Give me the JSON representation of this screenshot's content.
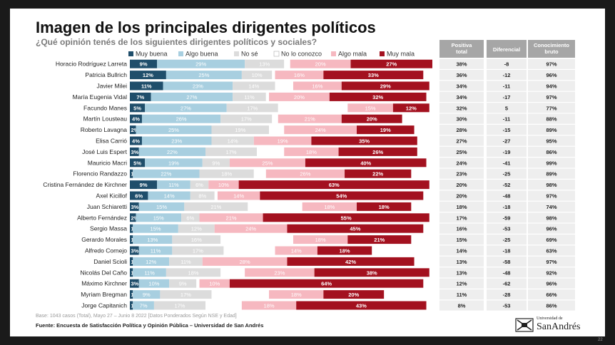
{
  "title": "Imagen de los principales dirigentes políticos",
  "subtitle": "¿Qué opinión tenés de los siguientes dirigentes políticos y sociales?",
  "footnote": "Base: 1043 casos (Total), Mayo 27 – Junio 8 2022 [Datos Ponderados Según NSE y Edad]",
  "source": "Fuente: Encuesta de Satisfacción Política y Opinión Pública – Universidad de San Andrés",
  "logo": {
    "small": "Universidad de",
    "big": "SanAndrés"
  },
  "page_number": "22",
  "colors": {
    "muy_buena": "#1f4e6b",
    "algo_buena": "#a8cfe0",
    "no_se": "#dcdcdc",
    "no_lo_conozco": "#ffffff",
    "algo_mala": "#f6b8c0",
    "muy_mala": "#a3111f",
    "table_header": "#a6a6a6",
    "table_row": "#eeeeee"
  },
  "chart_data": {
    "type": "bar",
    "stacked": true,
    "orientation": "horizontal",
    "legend_position": "top",
    "categories": [
      "Horacio Rodríguez Larreta",
      "Patricia Bullrich",
      "Javier Milei",
      "María Eugenia Vidal",
      "Facundo Manes",
      "Martín Lousteau",
      "Roberto Lavagna",
      "Elisa Carrió",
      "José Luis Espert",
      "Mauricio Macri",
      "Florencio Randazzo",
      "Cristina Fernández de Kirchner",
      "Axel Kicillof",
      "Juan Schiaretti",
      "Alberto Fernández",
      "Sergio Massa",
      "Gerardo Morales",
      "Alfredo Cornejo",
      "Daniel Scioli",
      "Nicolás Del Caño",
      "Máximo Kirchner",
      "Myriam Bregman",
      "Jorge Capitanich"
    ],
    "series": [
      {
        "name": "Muy buena",
        "values": [
          9,
          12,
          11,
          7,
          5,
          4,
          2,
          4,
          3,
          5,
          1,
          9,
          6,
          3,
          2,
          1,
          1,
          3,
          1,
          1,
          3,
          1,
          1
        ]
      },
      {
        "name": "Algo buena",
        "values": [
          29,
          25,
          23,
          27,
          27,
          26,
          25,
          23,
          22,
          19,
          22,
          11,
          14,
          15,
          15,
          15,
          13,
          11,
          12,
          11,
          10,
          9,
          7
        ]
      },
      {
        "name": "No sé",
        "values": [
          13,
          10,
          14,
          11,
          17,
          17,
          19,
          14,
          17,
          9,
          18,
          6,
          8,
          21,
          6,
          12,
          16,
          17,
          11,
          18,
          9,
          17,
          17
        ]
      },
      {
        "name": "No lo conozco",
        "values": [
          2,
          1,
          6,
          1,
          23,
          2,
          5,
          0,
          9,
          0,
          4,
          0,
          1,
          18,
          0,
          0,
          24,
          17,
          0,
          8,
          1,
          19,
          12
        ]
      },
      {
        "name": "Algo mala",
        "values": [
          20,
          16,
          16,
          20,
          15,
          21,
          24,
          19,
          18,
          25,
          26,
          10,
          14,
          18,
          21,
          24,
          18,
          14,
          28,
          23,
          10,
          18,
          18
        ]
      },
      {
        "name": "Muy mala",
        "values": [
          27,
          33,
          29,
          32,
          12,
          20,
          19,
          35,
          26,
          40,
          22,
          63,
          54,
          18,
          55,
          45,
          21,
          18,
          42,
          38,
          64,
          20,
          43
        ]
      }
    ],
    "table": {
      "headers": [
        "Positiva total",
        "Diferencial",
        "Conocimiento bruto"
      ],
      "positiva_total": [
        "38%",
        "36%",
        "34%",
        "34%",
        "32%",
        "30%",
        "28%",
        "27%",
        "25%",
        "24%",
        "23%",
        "20%",
        "20%",
        "18%",
        "17%",
        "16%",
        "15%",
        "14%",
        "13%",
        "13%",
        "12%",
        "11%",
        "8%"
      ],
      "diferencial": [
        "-8",
        "-12",
        "-11",
        "-17",
        "5",
        "-11",
        "-15",
        "-27",
        "-19",
        "-41",
        "-25",
        "-52",
        "-48",
        "-18",
        "-59",
        "-53",
        "-25",
        "-18",
        "-58",
        "-48",
        "-62",
        "-28",
        "-53"
      ],
      "conocimiento_bruto": [
        "97%",
        "96%",
        "94%",
        "97%",
        "77%",
        "88%",
        "89%",
        "95%",
        "86%",
        "99%",
        "89%",
        "98%",
        "97%",
        "74%",
        "98%",
        "96%",
        "69%",
        "63%",
        "97%",
        "92%",
        "96%",
        "66%",
        "86%"
      ]
    }
  }
}
